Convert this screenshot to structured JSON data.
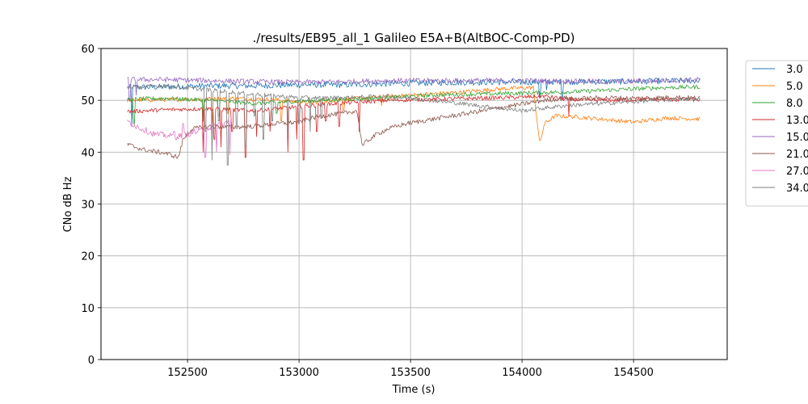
{
  "chart_data": {
    "type": "line",
    "title": "./results/EB95_all_1 Galileo E5A+B(AltBOC-Comp-PD)",
    "xlabel": "Time (s)",
    "ylabel": "CNo dB Hz",
    "xlim": [
      152112,
      154920
    ],
    "ylim": [
      0,
      60
    ],
    "xticks": [
      152500,
      153000,
      153500,
      154000,
      154500
    ],
    "yticks": [
      0,
      10,
      20,
      30,
      40,
      50,
      60
    ],
    "grid": true,
    "legend_position": "outside-right",
    "series": [
      {
        "name": "3.0",
        "color": "#1f77b4",
        "noise": 0.6,
        "x": [
          152230,
          152400,
          152600,
          152800,
          153000,
          153200,
          153400,
          153600,
          153800,
          154000,
          154200,
          154400,
          154600,
          154800
        ],
        "y": [
          52.5,
          52.6,
          52.8,
          52.8,
          53.0,
          53.0,
          53.2,
          53.4,
          53.5,
          53.5,
          53.6,
          53.6,
          53.7,
          53.8
        ]
      },
      {
        "name": "5.0",
        "color": "#ff7f0e",
        "noise": 0.4,
        "x": [
          152230,
          152500,
          152700,
          152900,
          153050,
          153150,
          153300,
          153500,
          153700,
          153900,
          154050,
          154080,
          154100,
          154150,
          154250,
          154400,
          154500,
          154650,
          154800
        ],
        "y": [
          50.0,
          50.2,
          50.4,
          50.1,
          49.5,
          50.0,
          50.5,
          51.0,
          51.5,
          52.2,
          52.5,
          41.5,
          45.5,
          47.0,
          46.8,
          46.2,
          45.8,
          46.6,
          46.4
        ]
      },
      {
        "name": "8.0",
        "color": "#2ca02c",
        "noise": 0.4,
        "x": [
          152230,
          152400,
          152600,
          152800,
          153000,
          153200,
          153400,
          153600,
          153800,
          154000,
          154200,
          154400,
          154600,
          154800
        ],
        "y": [
          50.2,
          50.4,
          50.0,
          49.4,
          49.8,
          50.2,
          50.5,
          51.0,
          51.2,
          51.4,
          51.6,
          52.0,
          52.4,
          52.6
        ]
      },
      {
        "name": "13.0",
        "color": "#d62728",
        "noise": 0.4,
        "x": [
          152230,
          152400,
          152600,
          152800,
          153000,
          153200,
          153400,
          153600,
          153800,
          154000,
          154100,
          154200,
          154300,
          154400,
          154600,
          154800
        ],
        "y": [
          47.8,
          48.2,
          48.4,
          48.0,
          48.8,
          49.5,
          50.0,
          50.2,
          50.4,
          50.6,
          50.8,
          50.2,
          50.0,
          50.0,
          50.2,
          50.1
        ]
      },
      {
        "name": "15.0",
        "color": "#9467bd",
        "noise": 0.5,
        "x": [
          152230,
          152400,
          152600,
          152800,
          153000,
          153200,
          153400,
          153600,
          153800,
          154000,
          154200,
          154400,
          154600,
          154800
        ],
        "y": [
          54.0,
          54.0,
          53.8,
          53.6,
          53.5,
          53.6,
          53.8,
          53.8,
          53.8,
          53.8,
          53.7,
          53.6,
          53.8,
          54.0
        ]
      },
      {
        "name": "21.0",
        "color": "#8c564b",
        "noise": 0.45,
        "x": [
          152230,
          152300,
          152400,
          152460,
          152480,
          152520,
          152600,
          152700,
          152800,
          152900,
          153000,
          153050,
          153100,
          153200,
          153260,
          153285,
          153300,
          153350,
          153400,
          153480,
          154100,
          154150,
          154200,
          154220,
          154300,
          154400,
          154500,
          154600,
          154700,
          154800
        ],
        "y": [
          41.5,
          40.5,
          39.8,
          39.0,
          42.5,
          44.5,
          45.0,
          44.8,
          45.0,
          45.5,
          45.8,
          46.5,
          47.0,
          47.5,
          48.0,
          41.0,
          42.0,
          43.5,
          44.5,
          45.5,
          50.0,
          50.2,
          50.5,
          50.3,
          50.4,
          50.5,
          50.4,
          50.5,
          50.6,
          50.4
        ]
      },
      {
        "name": "27.0",
        "color": "#e377c2",
        "noise": 0.6,
        "x": [
          152230,
          152280,
          152350,
          152450,
          152550,
          152650,
          152700
        ],
        "y": [
          46.0,
          44.8,
          43.5,
          43.0,
          44.0,
          45.5,
          46.0
        ]
      },
      {
        "name": "34.0",
        "color": "#7f7f7f",
        "noise": 0.4,
        "x": [
          152230,
          152400,
          152600,
          152800,
          153000,
          153200,
          153400,
          153550,
          153700,
          153800,
          153900,
          154000,
          154100,
          154200,
          154400,
          154600,
          154800
        ],
        "y": [
          52.5,
          52.8,
          52.0,
          51.2,
          50.5,
          50.5,
          50.8,
          50.2,
          49.5,
          49.0,
          48.5,
          48.0,
          48.5,
          49.0,
          49.5,
          50.0,
          50.3
        ]
      }
    ],
    "spikes": [
      {
        "series": "3.0",
        "x": [
          152250,
          154080,
          154110,
          154180
        ],
        "y": [
          45.0,
          50.5,
          52.0,
          50.5
        ]
      },
      {
        "series": "5.0",
        "x": [
          152570,
          152610,
          152680,
          152920,
          153200,
          153370
        ],
        "y": [
          47.0,
          45.5,
          47.5,
          46.0,
          48.0,
          49.0
        ]
      },
      {
        "series": "8.0",
        "x": [
          152260,
          152570,
          152640,
          152900
        ],
        "y": [
          45.5,
          46.0,
          47.0,
          47.5
        ]
      },
      {
        "series": "13.0",
        "x": [
          152570,
          152620,
          152650,
          152700,
          152760,
          152810,
          152870,
          152950,
          152990,
          153020,
          153080,
          153120,
          153180,
          153270,
          154210
        ],
        "y": [
          40.0,
          42.5,
          41.0,
          44.0,
          39.0,
          43.0,
          44.0,
          40.0,
          42.5,
          38.5,
          44.0,
          46.0,
          45.0,
          44.0,
          47.0
        ]
      },
      {
        "series": "15.0",
        "x": [
          152240,
          152270
        ],
        "y": [
          50.0,
          51.0
        ]
      },
      {
        "series": "27.0",
        "x": [
          152440,
          152480,
          152530,
          152580,
          152610,
          152630,
          152660,
          152690
        ],
        "y": [
          44.0,
          45.5,
          44.5,
          39.0,
          43.0,
          40.0,
          45.0,
          39.5
        ]
      },
      {
        "series": "34.0",
        "x": [
          152580,
          152610,
          152640,
          152680,
          152720,
          152760,
          152800,
          152840,
          152880,
          152950,
          153000,
          153050,
          153100
        ],
        "y": [
          44.0,
          38.5,
          46.0,
          37.5,
          45.0,
          41.0,
          47.0,
          42.5,
          46.0,
          44.0,
          45.5,
          44.0,
          46.5
        ]
      }
    ]
  }
}
